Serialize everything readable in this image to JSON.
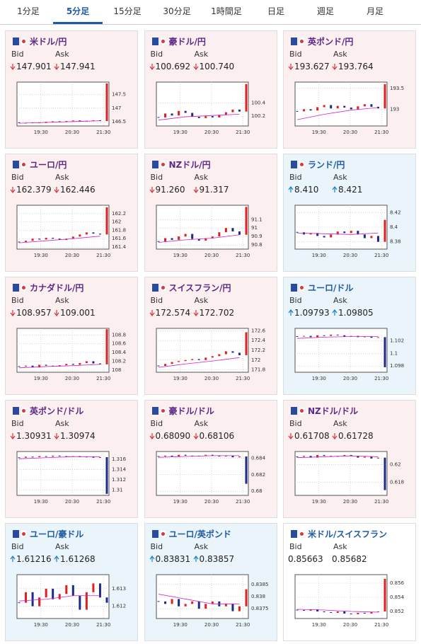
{
  "tabs": [
    "1分足",
    "5分足",
    "15分足",
    "30分足",
    "1時間足",
    "日足",
    "週足",
    "月足"
  ],
  "active_tab": 1,
  "cards": [
    {
      "name": "米ドル/円",
      "bid_label": "Bid",
      "ask_label": "Ask",
      "bid": "147.901",
      "ask": "147.941",
      "direction": "down",
      "chart": {
        "ylim": [
          146.35,
          147.95
        ],
        "yticks": [
          147.5,
          147,
          146.5
        ],
        "xticks": [
          "19:30",
          "20:30",
          "21:30"
        ],
        "values": [
          146.47,
          146.45,
          146.48,
          146.46,
          146.5,
          146.52,
          146.49,
          146.53,
          146.55,
          146.51,
          146.54,
          146.56,
          146.53,
          147.9
        ],
        "ma": [
          146.45,
          146.48,
          146.51,
          146.54
        ]
      }
    },
    {
      "name": "豪ドル/円",
      "bid_label": "Bid",
      "ask_label": "Ask",
      "bid": "100.692",
      "ask": "100.740",
      "direction": "down",
      "chart": {
        "ylim": [
          100.05,
          100.72
        ],
        "yticks": [
          100.4,
          100.2
        ],
        "xticks": [
          "19:30",
          "20:30",
          "21:30"
        ],
        "values": [
          100.18,
          100.24,
          100.21,
          100.28,
          100.25,
          100.19,
          100.17,
          100.2,
          100.18,
          100.22,
          100.26,
          100.3,
          100.27,
          100.69
        ],
        "ma": [
          100.14,
          100.19,
          100.21,
          100.23
        ]
      }
    },
    {
      "name": "英ポンド/円",
      "bid_label": "Bid",
      "ask_label": "Ask",
      "bid": "193.627",
      "ask": "193.764",
      "direction": "down",
      "chart": {
        "ylim": [
          192.6,
          193.65
        ],
        "yticks": [
          193.5,
          193
        ],
        "xticks": [
          "19:30",
          "20:30",
          "21:30"
        ],
        "values": [
          192.95,
          193.0,
          192.97,
          193.05,
          193.1,
          193.02,
          193.08,
          193.04,
          193.0,
          193.07,
          193.12,
          193.06,
          193.02,
          193.6
        ],
        "ma": [
          192.75,
          192.88,
          192.98,
          193.04
        ]
      }
    },
    {
      "name": "ユーロ/円",
      "bid_label": "Bid",
      "ask_label": "Ask",
      "bid": "162.379",
      "ask": "162.446",
      "direction": "down",
      "chart": {
        "ylim": [
          161.35,
          162.4
        ],
        "yticks": [
          162.2,
          162,
          161.8,
          161.6,
          161.4
        ],
        "xticks": [
          "19:30",
          "20:30",
          "21:30"
        ],
        "values": [
          161.52,
          161.55,
          161.6,
          161.58,
          161.62,
          161.6,
          161.57,
          161.6,
          161.65,
          161.7,
          161.75,
          161.72,
          161.7,
          162.35
        ],
        "ma": [
          161.5,
          161.55,
          161.6,
          161.66
        ]
      }
    },
    {
      "name": "NZドル/円",
      "bid_label": "Bid",
      "ask_label": "Ask",
      "bid": "91.260",
      "ask": "91.317",
      "direction": "down",
      "chart": {
        "ylim": [
          90.75,
          91.27
        ],
        "yticks": [
          91.1,
          91,
          90.9,
          90.8
        ],
        "xticks": [
          "19:30",
          "20:30",
          "21:30"
        ],
        "values": [
          90.84,
          90.88,
          90.86,
          90.9,
          90.93,
          90.87,
          90.85,
          90.88,
          90.9,
          90.95,
          91.0,
          90.96,
          90.92,
          91.25
        ],
        "ma": [
          90.83,
          90.86,
          90.88,
          90.92
        ]
      }
    },
    {
      "name": "ランド/円",
      "bid_label": "Bid",
      "ask_label": "Ask",
      "bid": "8.410",
      "ask": "8.421",
      "direction": "up",
      "chart": {
        "ylim": [
          8.37,
          8.43
        ],
        "yticks": [
          8.42,
          8.4,
          8.38
        ],
        "xticks": [
          "19:30",
          "20:30",
          "21:30"
        ],
        "values": [
          8.393,
          8.39,
          8.392,
          8.388,
          8.386,
          8.39,
          8.394,
          8.392,
          8.395,
          8.39,
          8.385,
          8.388,
          8.38,
          8.41
        ],
        "ma": [
          8.392,
          8.391,
          8.39,
          8.392
        ]
      }
    },
    {
      "name": "カナダドル/円",
      "bid_label": "Bid",
      "ask_label": "Ask",
      "bid": "108.957",
      "ask": "109.001",
      "direction": "down",
      "chart": {
        "ylim": [
          107.95,
          108.95
        ],
        "yticks": [
          108.8,
          108.6,
          108.4,
          108.2,
          108
        ],
        "xticks": [
          "19:30",
          "20:30",
          "21:30"
        ],
        "values": [
          108.08,
          108.1,
          108.06,
          108.12,
          108.1,
          108.08,
          108.11,
          108.14,
          108.12,
          108.16,
          108.2,
          108.15,
          108.13,
          108.93
        ],
        "ma": [
          108.05,
          108.08,
          108.1,
          108.13
        ]
      }
    },
    {
      "name": "スイスフラン/円",
      "bid_label": "Bid",
      "ask_label": "Ask",
      "bid": "172.574",
      "ask": "172.702",
      "direction": "down",
      "chart": {
        "ylim": [
          171.75,
          172.65
        ],
        "yticks": [
          172.6,
          172.4,
          172.2,
          172,
          171.8
        ],
        "xticks": [
          "19:30",
          "20:30",
          "21:30"
        ],
        "values": [
          171.88,
          171.92,
          171.96,
          171.98,
          172.0,
          172.02,
          172.0,
          172.05,
          172.08,
          172.12,
          172.18,
          172.15,
          172.1,
          172.57
        ],
        "ma": [
          171.85,
          171.92,
          171.98,
          172.05
        ]
      }
    },
    {
      "name": "ユーロ/ドル",
      "bid_label": "Bid",
      "ask_label": "Ask",
      "bid": "1.09793",
      "ask": "1.09805",
      "direction": "up",
      "chart": {
        "ylim": [
          1.097,
          1.104
        ],
        "yticks": [
          1.102,
          1.1,
          1.098
        ],
        "xticks": [
          "19:30",
          "20:30",
          "21:30"
        ],
        "values": [
          1.1027,
          1.1028,
          1.1026,
          1.1029,
          1.1028,
          1.103,
          1.1029,
          1.1027,
          1.1028,
          1.1026,
          1.1027,
          1.1025,
          1.1026,
          1.0978
        ],
        "ma": [
          1.1024,
          1.1026,
          1.1027,
          1.1027
        ]
      }
    },
    {
      "name": "英ポンド/ドル",
      "bid_label": "Bid",
      "ask_label": "Ask",
      "bid": "1.30931",
      "ask": "1.30974",
      "direction": "down",
      "chart": {
        "ylim": [
          1.309,
          1.3175
        ],
        "yticks": [
          1.316,
          1.314,
          1.312,
          1.31
        ],
        "xticks": [
          "19:30",
          "20:30",
          "21:30"
        ],
        "values": [
          1.3163,
          1.3165,
          1.3164,
          1.3166,
          1.3165,
          1.3167,
          1.3166,
          1.3165,
          1.3166,
          1.3164,
          1.3165,
          1.3163,
          1.3164,
          1.3093
        ],
        "ma": [
          1.3161,
          1.3163,
          1.3165,
          1.3165
        ]
      }
    },
    {
      "name": "豪ドル/ドル",
      "bid_label": "Bid",
      "ask_label": "Ask",
      "bid": "0.68090",
      "ask": "0.68106",
      "direction": "down",
      "chart": {
        "ylim": [
          0.6795,
          0.6848
        ],
        "yticks": [
          0.684,
          0.682,
          0.68
        ],
        "xticks": [
          "19:30",
          "20:30",
          "21:30"
        ],
        "values": [
          0.6842,
          0.6843,
          0.6842,
          0.6844,
          0.6843,
          0.6842,
          0.6843,
          0.6844,
          0.6843,
          0.6842,
          0.6843,
          0.6841,
          0.6842,
          0.6809
        ],
        "ma": [
          0.6841,
          0.6842,
          0.6843,
          0.6843
        ]
      }
    },
    {
      "name": "NZドル/ドル",
      "bid_label": "Bid",
      "ask_label": "Ask",
      "bid": "0.61708",
      "ask": "0.61728",
      "direction": "down",
      "chart": {
        "ylim": [
          0.6165,
          0.6215
        ],
        "yticks": [
          0.62,
          0.618
        ],
        "xticks": [
          "19:30",
          "20:30",
          "21:30"
        ],
        "values": [
          0.6209,
          0.621,
          0.6208,
          0.6211,
          0.621,
          0.6209,
          0.621,
          0.6211,
          0.621,
          0.6208,
          0.6209,
          0.6207,
          0.6208,
          0.6171
        ],
        "ma": [
          0.6208,
          0.6209,
          0.621,
          0.6209
        ]
      }
    },
    {
      "name": "ユーロ/豪ドル",
      "bid_label": "Bid",
      "ask_label": "Ask",
      "bid": "1.61216",
      "ask": "1.61268",
      "direction": "up",
      "chart": {
        "ylim": [
          1.6113,
          1.6138
        ],
        "yticks": [
          1.613,
          1.612
        ],
        "xticks": [
          "19:30",
          "20:30",
          "21:30"
        ],
        "values": [
          1.6122,
          1.6128,
          1.612,
          1.6125,
          1.613,
          1.6124,
          1.6127,
          1.6132,
          1.6126,
          1.6118,
          1.6128,
          1.6133,
          1.6125,
          1.6122
        ],
        "ma": [
          1.6123,
          1.6124,
          1.6126,
          1.6126
        ]
      }
    },
    {
      "name": "ユーロ/英ポンド",
      "bid_label": "Bid",
      "ask_label": "Ask",
      "bid": "0.83831",
      "ask": "0.83857",
      "direction": "up",
      "chart": {
        "ylim": [
          0.8371,
          0.8389
        ],
        "yticks": [
          0.8385,
          0.838,
          0.8375
        ],
        "xticks": [
          "19:30",
          "20:30",
          "21:30"
        ],
        "values": [
          0.8378,
          0.8377,
          0.8379,
          0.8376,
          0.8377,
          0.8378,
          0.8375,
          0.8377,
          0.8378,
          0.8376,
          0.8377,
          0.8374,
          0.8376,
          0.8383
        ],
        "ma": [
          0.8381,
          0.8379,
          0.8377,
          0.8377
        ]
      }
    },
    {
      "name": "米ドル/スイスフラン",
      "bid_label": "Bid",
      "ask_label": "Ask",
      "bid": "0.85663",
      "ask": "0.85682",
      "direction": null,
      "chart": {
        "ylim": [
          0.851,
          0.8572
        ],
        "yticks": [
          0.856,
          0.854,
          0.852
        ],
        "xticks": [
          "19:30",
          "20:30",
          "21:30"
        ],
        "values": [
          0.8522,
          0.8521,
          0.8523,
          0.852,
          0.8519,
          0.8518,
          0.852,
          0.8517,
          0.8516,
          0.8518,
          0.8517,
          0.8519,
          0.852,
          0.8566
        ],
        "ma": [
          0.8523,
          0.8522,
          0.852,
          0.8519
        ]
      }
    }
  ]
}
